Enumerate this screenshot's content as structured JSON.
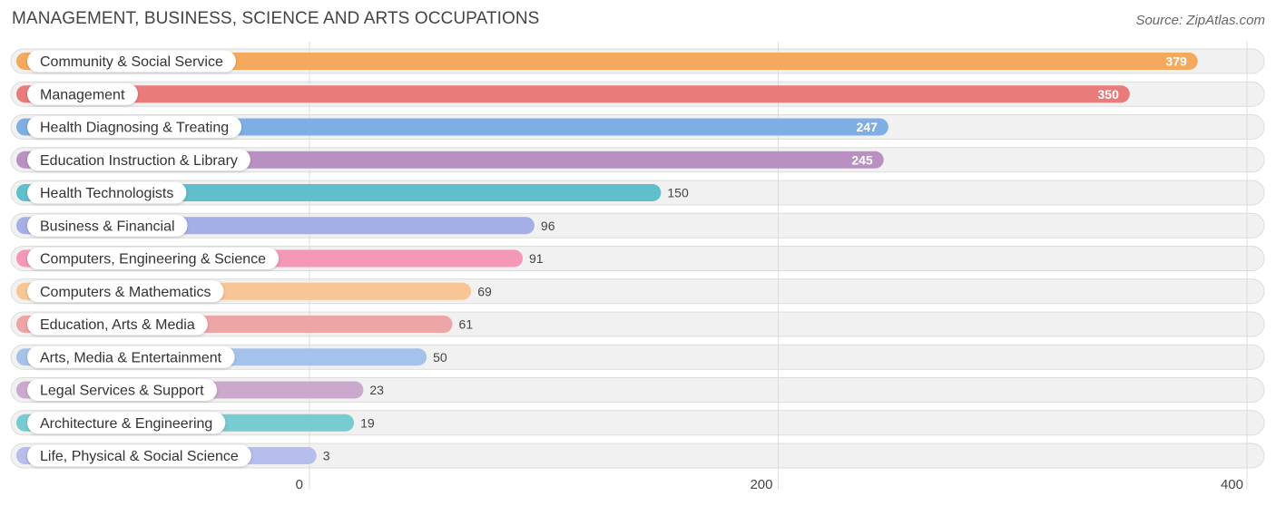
{
  "header": {
    "title": "MANAGEMENT, BUSINESS, SCIENCE AND ARTS OCCUPATIONS",
    "source": "Source: ZipAtlas.com"
  },
  "chart_data": {
    "type": "bar",
    "orientation": "horizontal",
    "title": "MANAGEMENT, BUSINESS, SCIENCE AND ARTS OCCUPATIONS",
    "xlabel": "",
    "ylabel": "",
    "xlim": [
      0,
      400
    ],
    "xticks": [
      0,
      200,
      400
    ],
    "grid": true,
    "categories": [
      "Community & Social Service",
      "Management",
      "Health Diagnosing & Treating",
      "Education Instruction & Library",
      "Health Technologists",
      "Business & Financial",
      "Computers, Engineering & Science",
      "Computers & Mathematics",
      "Education, Arts & Media",
      "Arts, Media & Entertainment",
      "Legal Services & Support",
      "Architecture & Engineering",
      "Life, Physical & Social Science"
    ],
    "values": [
      379,
      350,
      247,
      245,
      150,
      96,
      91,
      69,
      61,
      50,
      23,
      19,
      3
    ],
    "colors": [
      "#f5a95c",
      "#e97b7b",
      "#7eaee4",
      "#b990c2",
      "#5fbfcb",
      "#a6aee8",
      "#f597b6",
      "#f8c594",
      "#eda5a5",
      "#a5c3ea",
      "#cba9cc",
      "#78cbd1",
      "#b7bdec"
    ]
  }
}
